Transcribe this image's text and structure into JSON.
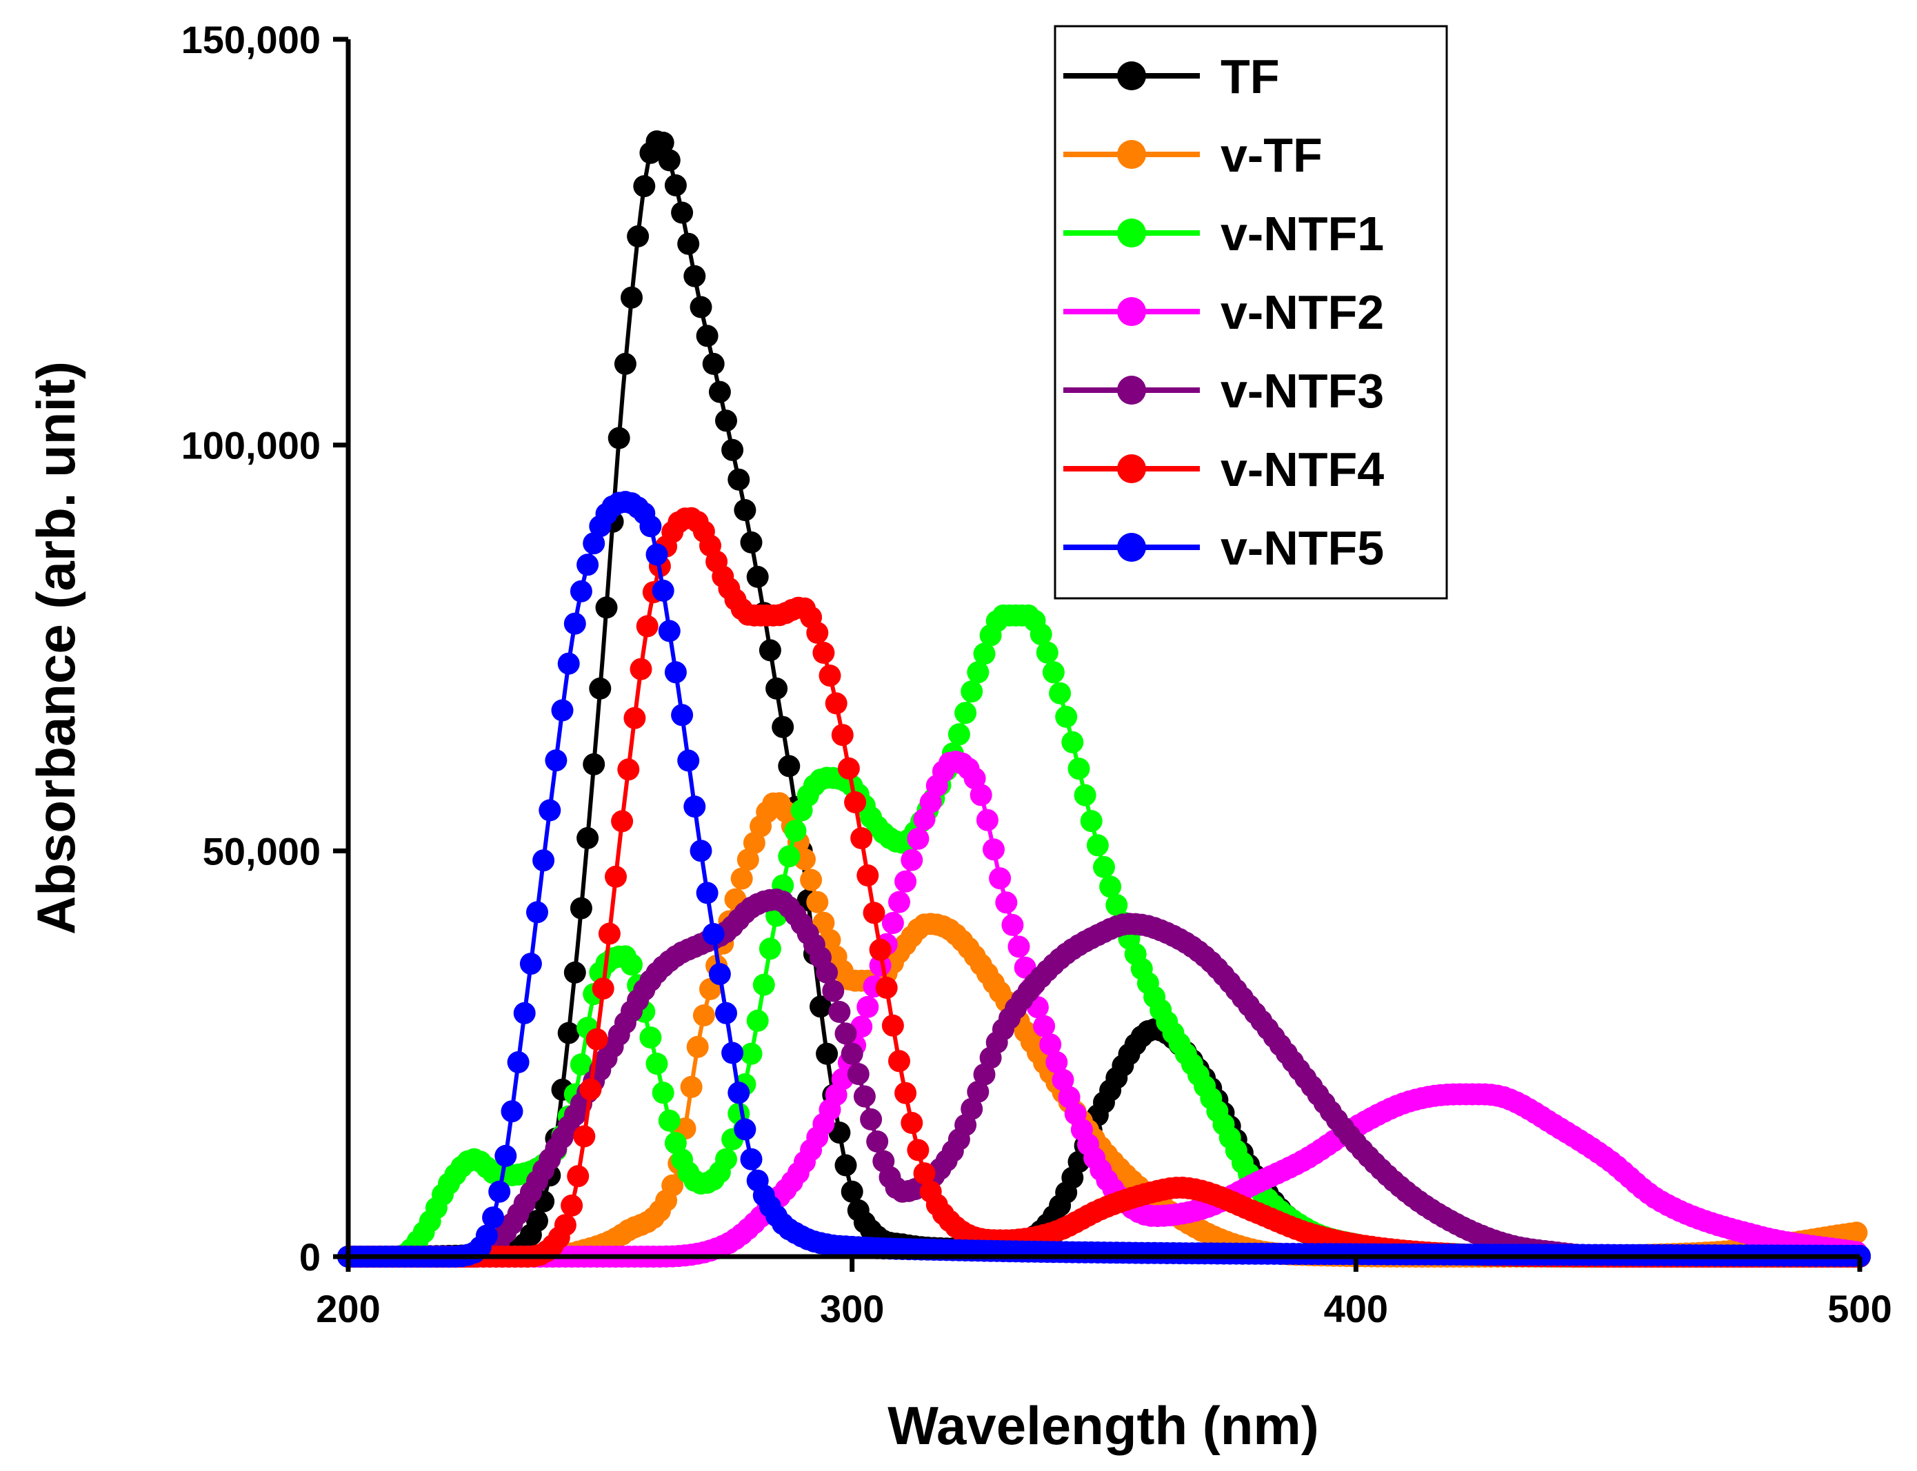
{
  "chart_data": {
    "type": "line",
    "title": "",
    "xlabel": "Wavelength (nm)",
    "ylabel": "Absorbance (arb. unit)",
    "xlim": [
      200,
      500
    ],
    "ylim": [
      0,
      150000
    ],
    "xticks": [
      200,
      300,
      400,
      500
    ],
    "xtick_labels": [
      "200",
      "300",
      "400",
      "500"
    ],
    "yticks": [
      0,
      50000,
      100000,
      150000
    ],
    "ytick_labels": [
      "0",
      "50,000",
      "100,000",
      "150,000"
    ],
    "grid": false,
    "legend_position": "top-right",
    "markers": "filled-circle",
    "series": [
      {
        "name": "TF",
        "color": "#000000",
        "x": [
          200,
          230,
          240,
          245,
          250,
          255,
          260,
          262,
          265,
          270,
          275,
          280,
          285,
          290,
          295,
          300,
          305,
          310,
          320,
          330,
          340,
          350,
          360,
          370,
          380,
          390,
          400,
          420,
          450,
          500
        ],
        "y": [
          0,
          300,
          10000,
          35000,
          70000,
          110000,
          136000,
          137500,
          132000,
          117000,
          103000,
          88000,
          70000,
          50000,
          25000,
          8000,
          2500,
          1500,
          1000,
          1200,
          5000,
          19000,
          28000,
          22000,
          10000,
          3000,
          800,
          200,
          0,
          0
        ]
      },
      {
        "name": "v-TF",
        "color": "#ff7f00",
        "x": [
          200,
          240,
          245,
          255,
          265,
          270,
          275,
          280,
          285,
          290,
          295,
          300,
          305,
          310,
          315,
          320,
          330,
          340,
          350,
          360,
          370,
          380,
          390,
          420,
          470,
          500
        ],
        "y": [
          0,
          0,
          500,
          3000,
          10000,
          28000,
          40000,
          50000,
          56000,
          50000,
          40000,
          34000,
          34000,
          38000,
          41000,
          40000,
          32000,
          22000,
          13000,
          7000,
          3000,
          800,
          200,
          0,
          500,
          3000
        ]
      },
      {
        "name": "v-NTF1",
        "color": "#00ff00",
        "x": [
          200,
          210,
          215,
          220,
          225,
          230,
          240,
          245,
          250,
          255,
          260,
          265,
          270,
          275,
          280,
          285,
          290,
          295,
          300,
          305,
          310,
          315,
          320,
          325,
          330,
          335,
          340,
          350,
          360,
          370,
          380,
          390,
          400,
          420,
          450,
          500
        ],
        "y": [
          0,
          0,
          3000,
          9000,
          12000,
          10000,
          12000,
          20000,
          35000,
          37000,
          27000,
          14000,
          9000,
          12000,
          25000,
          42000,
          55000,
          59000,
          58000,
          53000,
          51000,
          55000,
          62000,
          72000,
          79000,
          79000,
          72000,
          48000,
          32000,
          21000,
          9000,
          3500,
          1500,
          300,
          0,
          0
        ]
      },
      {
        "name": "v-NTF2",
        "color": "#ff00ff",
        "x": [
          200,
          260,
          275,
          285,
          290,
          300,
          310,
          315,
          320,
          325,
          330,
          340,
          350,
          360,
          370,
          380,
          390,
          400,
          410,
          420,
          425,
          430,
          440,
          450,
          460,
          480,
          500
        ],
        "y": [
          0,
          0,
          1500,
          7000,
          11000,
          25000,
          45000,
          55000,
          61000,
          58000,
          45000,
          25000,
          10000,
          5000,
          6000,
          9000,
          12000,
          16000,
          19000,
          20000,
          20000,
          19500,
          16000,
          12000,
          7000,
          2500,
          500
        ]
      },
      {
        "name": "v-NTF3",
        "color": "#800080",
        "x": [
          200,
          225,
          230,
          240,
          250,
          260,
          265,
          270,
          275,
          280,
          285,
          290,
          295,
          300,
          310,
          320,
          330,
          340,
          350,
          355,
          360,
          370,
          380,
          390,
          400,
          410,
          420,
          430,
          440,
          450,
          500
        ],
        "y": [
          0,
          0,
          2000,
          12000,
          23000,
          34000,
          37000,
          38500,
          40000,
          43000,
          44000,
          41000,
          35000,
          25000,
          8000,
          13000,
          28000,
          36000,
          40000,
          41000,
          40500,
          37000,
          30000,
          22000,
          14000,
          8000,
          4000,
          1500,
          500,
          0,
          0
        ]
      },
      {
        "name": "v-NTF4",
        "color": "#ff0000",
        "x": [
          200,
          235,
          240,
          245,
          250,
          255,
          260,
          265,
          268,
          270,
          275,
          280,
          285,
          290,
          295,
          300,
          305,
          310,
          315,
          320,
          330,
          340,
          350,
          360,
          365,
          370,
          380,
          390,
          400,
          420,
          450,
          500
        ],
        "y": [
          0,
          0,
          1000,
          8000,
          30000,
          57000,
          80000,
          90000,
          91000,
          90000,
          83000,
          79000,
          79000,
          80000,
          73000,
          58000,
          40000,
          22000,
          9000,
          4000,
          2000,
          3000,
          6000,
          8000,
          8500,
          8000,
          5500,
          3000,
          1500,
          300,
          0,
          0
        ]
      },
      {
        "name": "v-NTF5",
        "color": "#0000ff",
        "x": [
          200,
          220,
          225,
          230,
          235,
          240,
          245,
          250,
          255,
          258,
          260,
          265,
          270,
          275,
          280,
          285,
          290,
          295,
          300,
          320,
          350,
          400,
          450,
          500
        ],
        "y": [
          0,
          0,
          500,
          8000,
          30000,
          55000,
          78000,
          90000,
          93000,
          92000,
          90000,
          72000,
          50000,
          30000,
          12000,
          5000,
          2500,
          1500,
          1200,
          800,
          500,
          300,
          200,
          100
        ]
      }
    ]
  }
}
